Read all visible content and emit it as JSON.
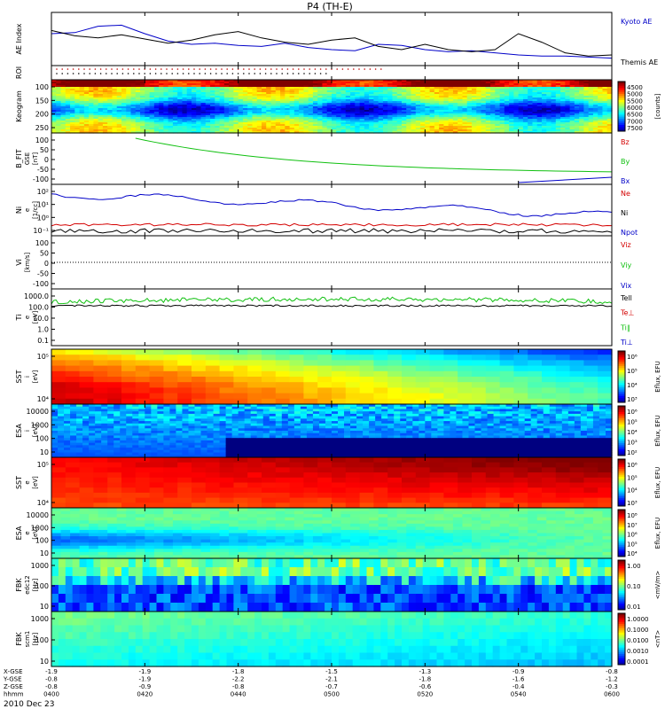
{
  "title": "P4 (TH-E)",
  "date_label": "2010 Dec 23",
  "chart_data": [
    {
      "id": "ae",
      "type": "line",
      "ylabel": "AE Index",
      "legend": [
        "Kyoto AE",
        "Themis AE"
      ],
      "colors": [
        "#0000c8",
        "#000000"
      ],
      "series": [
        {
          "name": "Kyoto AE",
          "x": [
            0,
            5,
            10,
            15,
            20,
            25,
            30,
            35,
            40,
            45,
            50,
            55,
            60,
            65,
            70,
            75,
            80,
            85,
            90,
            95,
            100,
            105,
            110,
            115,
            120
          ],
          "y": [
            0.6,
            0.62,
            0.74,
            0.76,
            0.6,
            0.46,
            0.4,
            0.42,
            0.38,
            0.36,
            0.42,
            0.34,
            0.3,
            0.28,
            0.4,
            0.38,
            0.3,
            0.26,
            0.28,
            0.24,
            0.2,
            0.18,
            0.18,
            0.16,
            0.14
          ]
        },
        {
          "name": "Themis AE",
          "x": [
            0,
            5,
            10,
            15,
            20,
            25,
            30,
            35,
            40,
            45,
            50,
            55,
            60,
            65,
            70,
            75,
            80,
            85,
            90,
            95,
            100,
            105,
            110,
            115,
            120
          ],
          "y": [
            0.66,
            0.56,
            0.52,
            0.58,
            0.5,
            0.42,
            0.48,
            0.58,
            0.64,
            0.52,
            0.44,
            0.4,
            0.48,
            0.52,
            0.36,
            0.3,
            0.4,
            0.3,
            0.26,
            0.3,
            0.6,
            0.44,
            0.24,
            0.18,
            0.2
          ]
        }
      ]
    },
    {
      "id": "roi",
      "type": "scatter",
      "ylabel": "ROI"
    },
    {
      "id": "keogram",
      "type": "heatmap",
      "ylabel": "Keogram",
      "yticks": [
        "100",
        "150",
        "200",
        "250"
      ],
      "colorbar": {
        "label": "[counts]",
        "ticks": [
          "4500",
          "5000",
          "5500",
          "6000",
          "6500",
          "7000",
          "7500"
        ]
      }
    },
    {
      "id": "bfield",
      "type": "line",
      "ylabel": "B_FIT",
      "sub": [
        "GSE",
        "[nT]"
      ],
      "yticks": [
        "100",
        "50",
        "0",
        "-50",
        "-100"
      ],
      "legend": [
        "Bz",
        "By",
        "Bx"
      ],
      "colors": [
        "#d40000",
        "#10c010",
        "#0000c8"
      ]
    },
    {
      "id": "density",
      "type": "line",
      "ylabel": "Ni",
      "sub": [
        "e",
        "[1/cc]"
      ],
      "yticks": [
        "10²",
        "10¹",
        "10⁰",
        "10⁻¹"
      ],
      "legend": [
        "Ne",
        "Ni",
        "Npot"
      ],
      "colors": [
        "#d40000",
        "#000000",
        "#0000c8"
      ]
    },
    {
      "id": "velocity",
      "type": "line",
      "ylabel": "Vi",
      "sub": [
        "[km/s]"
      ],
      "yticks": [
        "100",
        "50",
        "0",
        "-50",
        "-100"
      ],
      "legend": [
        "Viz",
        "Viy",
        "Vix"
      ],
      "colors": [
        "#d40000",
        "#10c010",
        "#0000c8"
      ]
    },
    {
      "id": "temp",
      "type": "line",
      "ylabel": "Ti",
      "sub": [
        "e",
        "[eV]"
      ],
      "yticks": [
        "1000.0",
        "100.0",
        "10.0",
        "1.0",
        "0.1"
      ],
      "legend": [
        "Tell",
        "Te⊥",
        "Ti∥",
        "Ti⊥"
      ],
      "colors": [
        "#000000",
        "#d40000",
        "#10c010",
        "#0000c8"
      ]
    },
    {
      "id": "sst_i",
      "type": "heatmap",
      "ylabel": "SST",
      "sub": [
        "i",
        "[eV]"
      ],
      "yticks": [
        "10⁵",
        "10⁴"
      ],
      "colorbar": {
        "label": "Eflux, EFU",
        "ticks": [
          "10⁶",
          "10⁵",
          "10⁴",
          "10³"
        ]
      }
    },
    {
      "id": "esa_i",
      "type": "heatmap",
      "ylabel": "ESA",
      "sub": [
        "i",
        "[eV]"
      ],
      "yticks": [
        "10000",
        "1000",
        "100",
        "10"
      ],
      "colorbar": {
        "label": "Eflux, EFU",
        "ticks": [
          "10⁶",
          "10⁵",
          "10⁴",
          "10³",
          "10²"
        ]
      }
    },
    {
      "id": "sst_e",
      "type": "heatmap",
      "ylabel": "SST",
      "sub": [
        "e",
        "[eV]"
      ],
      "yticks": [
        "10⁵",
        "10⁴"
      ],
      "colorbar": {
        "label": "Eflux, EFU",
        "ticks": [
          "10⁶",
          "10⁵",
          "10⁴",
          "10³"
        ]
      }
    },
    {
      "id": "esa_e",
      "type": "heatmap",
      "ylabel": "ESA",
      "sub": [
        "e",
        "[eV]"
      ],
      "yticks": [
        "10000",
        "1000",
        "100",
        "10"
      ],
      "colorbar": {
        "label": "Eflux, EFU",
        "ticks": [
          "10⁸",
          "10⁷",
          "10⁶",
          "10⁵",
          "10⁴"
        ]
      }
    },
    {
      "id": "fbk_e",
      "type": "heatmap",
      "ylabel": "FBK",
      "sub": [
        "edc12",
        "[Hz]"
      ],
      "yticks": [
        "1000",
        "100",
        "10"
      ],
      "colorbar": {
        "label": "<mV/m>",
        "ticks": [
          "1.00",
          "0.10",
          "0.01"
        ]
      }
    },
    {
      "id": "fbk_b",
      "type": "heatmap",
      "ylabel": "FBK",
      "sub": [
        "scm1",
        "[Hz]"
      ],
      "yticks": [
        "1000",
        "100",
        "10"
      ],
      "colorbar": {
        "label": "<nT>",
        "ticks": [
          "1.0000",
          "0.1000",
          "0.0100",
          "0.0010",
          "0.0001"
        ]
      }
    },
    {
      "id": "xaxis",
      "type": "table",
      "rows": [
        {
          "label": "X-GSE",
          "values": [
            "-1.9",
            "-1.9",
            "-1.8",
            "-1.5",
            "-1.3",
            "-0.9",
            "-0.8"
          ]
        },
        {
          "label": "Y-GSE",
          "values": [
            "-0.8",
            "-1.9",
            "-2.2",
            "-2.1",
            "-1.8",
            "-1.6",
            "-1.2"
          ]
        },
        {
          "label": "Z-GSE",
          "values": [
            "-0.8",
            "-0.9",
            "-0.8",
            "-0.7",
            "-0.6",
            "-0.4",
            "-0.3"
          ]
        },
        {
          "label": "hhmm",
          "values": [
            "0400",
            "0420",
            "0440",
            "0500",
            "0520",
            "0540",
            "0600"
          ]
        }
      ]
    }
  ]
}
